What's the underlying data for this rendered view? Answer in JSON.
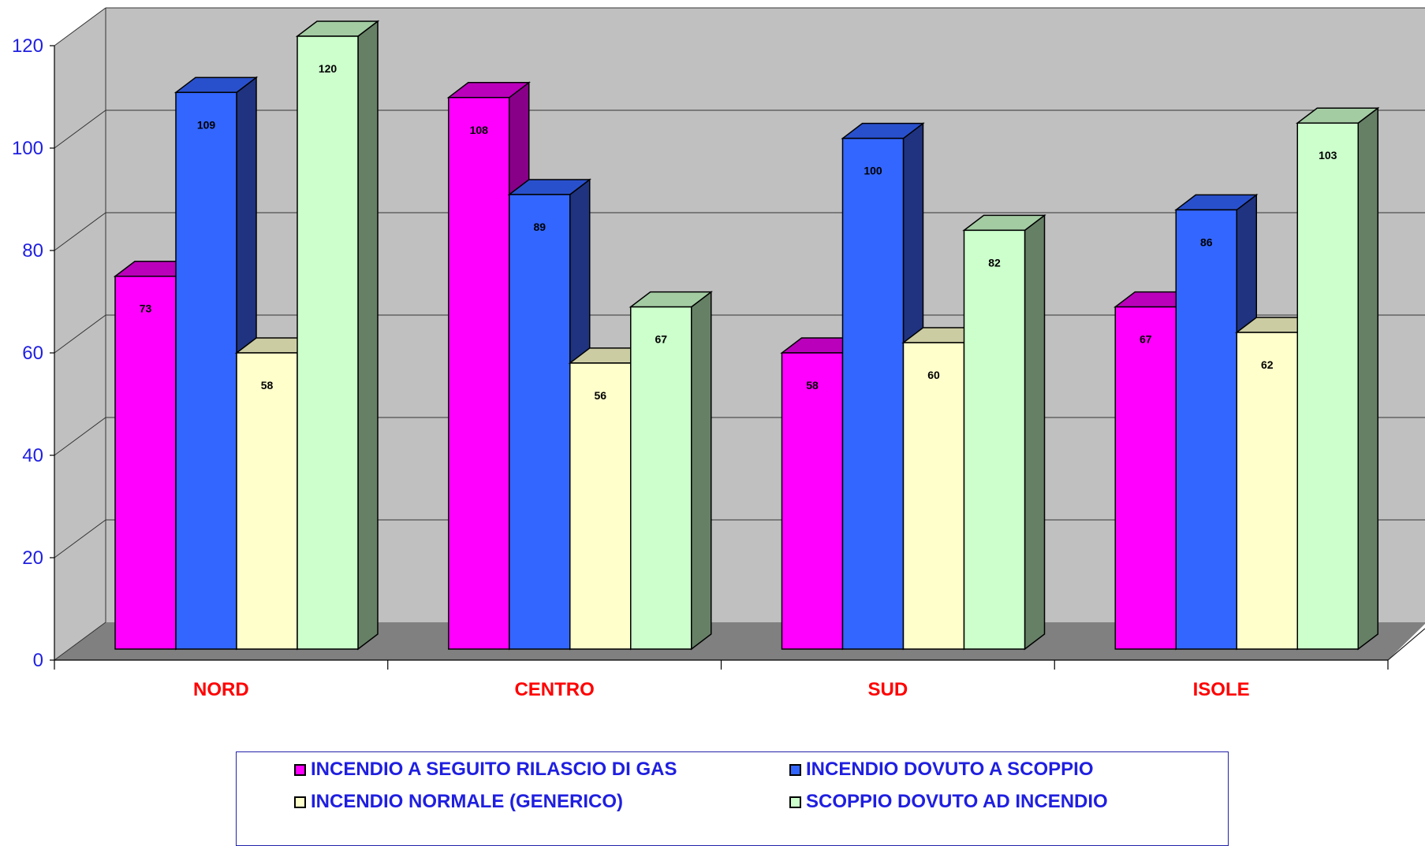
{
  "chart_data": {
    "type": "bar",
    "categories": [
      "NORD",
      "CENTRO",
      "SUD",
      "ISOLE"
    ],
    "series": [
      {
        "name": "INCENDIO A SEGUITO RILASCIO DI GAS",
        "values": [
          73,
          108,
          58,
          67
        ],
        "color": "#ff00ff",
        "side": "#880088",
        "top": "#bb00bb"
      },
      {
        "name": "INCENDIO DOVUTO A SCOPPIO",
        "values": [
          109,
          89,
          100,
          86
        ],
        "color": "#3366ff",
        "side": "#1f3380",
        "top": "#2950cc"
      },
      {
        "name": "INCENDIO NORMALE (GENERICO)",
        "values": [
          58,
          56,
          60,
          62
        ],
        "color": "#ffffcc",
        "side": "#808066",
        "top": "#cccca3"
      },
      {
        "name": "SCOPPIO DOVUTO AD INCENDIO",
        "values": [
          120,
          67,
          82,
          103
        ],
        "color": "#ccffcc",
        "side": "#668066",
        "top": "#a3cca3"
      }
    ],
    "yticks": [
      0,
      20,
      40,
      60,
      80,
      100,
      120
    ],
    "ylim": [
      0,
      120
    ],
    "grid": true,
    "legend_position": "bottom",
    "style": "3d-column"
  }
}
